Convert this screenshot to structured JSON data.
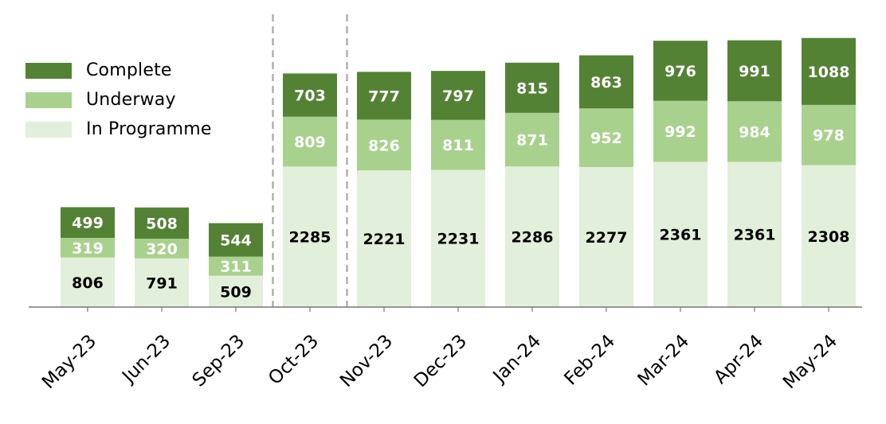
{
  "chart_data": {
    "type": "bar",
    "stacked": true,
    "categories": [
      "May-23",
      "Jun-23",
      "Sep-23",
      "Oct-23",
      "Nov-23",
      "Dec-23",
      "Jan-24",
      "Feb-24",
      "Mar-24",
      "Apr-24",
      "May-24"
    ],
    "series": [
      {
        "name": "In Programme",
        "color": "#e2efda",
        "values": [
          806,
          791,
          509,
          2285,
          2221,
          2231,
          2286,
          2277,
          2361,
          2361,
          2308
        ],
        "label_color": "#000000"
      },
      {
        "name": "Underway",
        "color": "#a9d18e",
        "values": [
          319,
          320,
          311,
          809,
          826,
          811,
          871,
          952,
          992,
          984,
          978
        ],
        "label_color": "#ffffff"
      },
      {
        "name": "Complete",
        "color": "#548235",
        "values": [
          499,
          508,
          544,
          703,
          777,
          797,
          815,
          863,
          976,
          991,
          1088
        ],
        "label_color": "#ffffff"
      }
    ],
    "legend_order": [
      "Complete",
      "Underway",
      "In Programme"
    ],
    "legend_position": "top-left",
    "separators_after_index": [
      2,
      3
    ],
    "xlabel": "",
    "ylabel": "",
    "ylim": [
      0,
      4500
    ],
    "grid": false
  }
}
